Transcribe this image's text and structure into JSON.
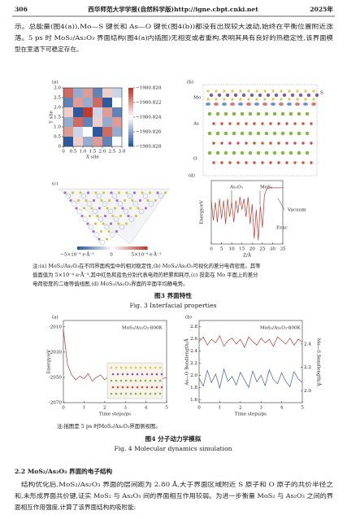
{
  "header": {
    "page": "306",
    "journal": "西华师范大学学报(自然科学版)http://igne.cbpt.cnki.net",
    "year": "2025年"
  },
  "intro": {
    "lines": [
      "示。总能量(图4(a)),Mo—S 键长和 As—O 键长(图4(b))都没有出现较大波动,始终在平衡位置附近涨",
      "落。5 ps 时 MoS₂/As₂O₃ 界面结构(图4(a)内插图)无相变或者重构,表明其具有良好的热稳定性,该界面模",
      "型在室温下可稳定存在。"
    ]
  },
  "figure3": {
    "a": {
      "label": "(a)",
      "xlabel": "X site",
      "ylabel": "Y site",
      "xticks": [
        0,
        0.5,
        {
          "value": 1,
          "label": "1.0"
        },
        1.5,
        {
          "value": 2,
          "label": "2.0"
        },
        2.5,
        {
          "value": 3,
          "label": "3.0"
        }
      ],
      "yticks": [
        0,
        0.5,
        {
          "value": 1,
          "label": "1.0"
        },
        1.5,
        {
          "value": 2,
          "label": "2.0"
        },
        2.5,
        {
          "value": 3,
          "label": "3.0"
        }
      ],
      "values": [
        [
          -1980.821,
          -1980.826,
          -1980.822,
          -1980.827,
          -1980.823,
          -1980.825
        ],
        [
          -1980.827,
          -1980.822,
          -1980.826,
          -1980.821,
          -1980.828,
          -1980.824
        ],
        [
          -1980.823,
          -1980.828,
          -1980.82,
          -1980.825,
          -1980.822,
          -1980.827
        ],
        [
          -1980.826,
          -1980.821,
          -1980.827,
          -1980.823,
          -1980.826,
          -1980.822
        ],
        [
          -1980.822,
          -1980.825,
          -1980.824,
          -1980.828,
          -1980.821,
          -1980.826
        ],
        [
          -1980.828,
          -1980.823,
          -1980.826,
          -1980.822,
          -1980.827,
          -1980.824
        ]
      ],
      "colorbar_ticks": [
        {
          "value": -1980.82,
          "label": "−1980.820"
        },
        {
          "value": -1980.822,
          "label": "−1980.822"
        },
        {
          "value": -1980.824,
          "label": "−1980.824"
        },
        {
          "value": -1980.826,
          "label": "−1980.826"
        },
        {
          "value": -1980.828,
          "label": "−1980.828"
        }
      ]
    },
    "b": {
      "label": "(b)",
      "atoms": [
        "Mo",
        "S",
        "As",
        "O"
      ]
    },
    "c": {
      "label": "(c)",
      "colorbar_labels": [
        "−5×10⁻⁴ e·Å⁻³",
        "0",
        "5×10⁻⁴ e·Å⁻³"
      ]
    },
    "d": {
      "label": "(d)",
      "xlabel": "Z/Å",
      "ylabel": "Energy/eV",
      "annotations": [
        "As₂O₃",
        "MoS₂",
        "Vacuum",
        "Evac"
      ],
      "xlim": [
        0,
        35
      ],
      "ylim": [
        -27,
        8
      ],
      "xticks": [
        0,
        5,
        10,
        15,
        20,
        25,
        30,
        35
      ],
      "x": [
        0,
        1,
        2,
        3,
        4,
        5,
        6,
        7,
        8,
        9,
        10,
        11,
        12,
        13,
        14,
        15,
        16,
        17,
        18,
        19,
        20,
        21,
        22,
        23,
        24,
        25,
        26,
        27,
        28,
        29,
        30,
        31,
        32,
        33,
        34,
        35
      ],
      "values": [
        -3,
        -14,
        -4,
        -15,
        -2,
        -13,
        -3,
        -16,
        -2,
        -12,
        -4,
        -15,
        -3,
        -10,
        -1,
        -8,
        -2,
        -12,
        -1,
        -16,
        -5,
        -24,
        -8,
        -25,
        -6,
        -18,
        0,
        3,
        4,
        4,
        4,
        4,
        4,
        4,
        4,
        4
      ],
      "color": "#c0392b"
    },
    "note_lines": [
      "注:(a) MoS₂/As₂O₃在不同界面构型中的相对稳定性,(b) MoS₂/As₂O₃可视化的差分电荷密度。其等",
      "值面值为 5×10⁻⁴ e·Å⁻³,其中红色和蓝色分别代表电荷的积累和耗尽,(c) 投影在 Mo 平面上的差分",
      "电荷密度的二维等值线图,(d) MoS₂/As₂O₃界面的平面平均静电势。"
    ],
    "title_cn": "图3  界面特性",
    "title_en": "Fig. 3   Interfacial properties"
  },
  "figure4": {
    "a": {
      "label": "(a)",
      "annotation": "MoS₂/As₂O₃-800K",
      "xlabel": "Time steps/ps",
      "ylabel": "Energy/eV",
      "xlim": [
        0,
        5
      ],
      "ylim": [
        -2070,
        -2005
      ],
      "xticks": [
        0,
        1,
        2,
        3,
        4,
        5
      ],
      "yticks": [
        -2010,
        -2030,
        -2050,
        -2070
      ],
      "x": [
        0,
        0.2,
        0.4,
        0.6,
        0.8,
        1,
        1.2,
        1.4,
        1.6,
        1.8,
        2,
        2.2,
        2.4,
        2.6,
        2.8,
        3,
        3.2,
        3.4,
        3.6,
        3.8,
        4,
        4.2,
        4.4,
        4.6,
        4.8,
        5
      ],
      "values": [
        -2012,
        -2040,
        -2048,
        -2052,
        -2049,
        -2051,
        -2047,
        -2053,
        -2050,
        -2048,
        -2052,
        -2049,
        -2051,
        -2047,
        -2050,
        -2053,
        -2049,
        -2051,
        -2048,
        -2052,
        -2050,
        -2049,
        -2052,
        -2048,
        -2051,
        -2050
      ],
      "color": "#c0392b"
    },
    "b": {
      "label": "(b)",
      "annotation": "MoS₂/As₂O₃-800K",
      "xlabel": "Time steps/ps",
      "xlim": [
        0,
        5
      ],
      "ylim": [
        1.55,
        2.9
      ],
      "y2lim": [
        1.9,
        2.6
      ],
      "xticks": [
        0,
        1,
        2,
        3,
        4,
        5
      ],
      "yticks": [
        1.6,
        1.8,
        {
          "value": 2,
          "label": "2.0"
        },
        2.2,
        2.4,
        2.6,
        2.8
      ],
      "y2ticks": [
        {
          "value": 2,
          "label": "2.0"
        },
        2.2,
        2.4
      ],
      "x": [
        0,
        0.2,
        0.4,
        0.6,
        0.8,
        1,
        1.2,
        1.4,
        1.6,
        1.8,
        2,
        2.2,
        2.4,
        2.6,
        2.8,
        3,
        3.2,
        3.4,
        3.6,
        3.8,
        4,
        4.2,
        4.4,
        4.6,
        4.8,
        5
      ],
      "series": [
        {
          "name": "As—O Bondlength/Å",
          "color": "#3a5fb0",
          "values": [
            1.95,
            1.82,
            2.08,
            1.88,
            2.02,
            1.79,
            2.1,
            1.9,
            1.98,
            1.84,
            2.05,
            1.92,
            1.8,
            2.07,
            1.89,
            2.0,
            1.83,
            2.09,
            1.93,
            1.86,
            2.04,
            1.9,
            1.81,
            2.06,
            1.94,
            1.88
          ]
        },
        {
          "name": "Mo—S Bondlength/Å",
          "color": "#c0392b",
          "axis": "y2",
          "values": [
            2.42,
            2.46,
            2.39,
            2.44,
            2.41,
            2.47,
            2.38,
            2.43,
            2.45,
            2.4,
            2.44,
            2.37,
            2.46,
            2.42,
            2.39,
            2.45,
            2.41,
            2.44,
            2.38,
            2.46,
            2.43,
            2.4,
            2.45,
            2.39,
            2.44,
            2.42
          ]
        }
      ]
    },
    "note": "注:插图是 5 ps 时MoS₂/As₂O₃界面侧视图。",
    "title_cn": "图4  分子动力学模拟",
    "title_en": "Fig. 4   Molecular dynamics simulation"
  },
  "section": {
    "heading": "2.2   MoS₂/As₂O₃ 界面的电子结构",
    "lines": [
      "结构优化后,MoS₂/As₂O₃ 界面的层间距为 2.80 Å,大于界面区域附近 S 原子和 O 原子的共价半径之",
      "和,未形成界面共价键,证实 MoS₂ 与 As₂O₃ 间的界面相互作用较弱。为进一步衡量 MoS₂ 与 As₂O₃ 之间的界",
      "面相互作用强度,计算了该界面结构的吸附能:"
    ]
  }
}
